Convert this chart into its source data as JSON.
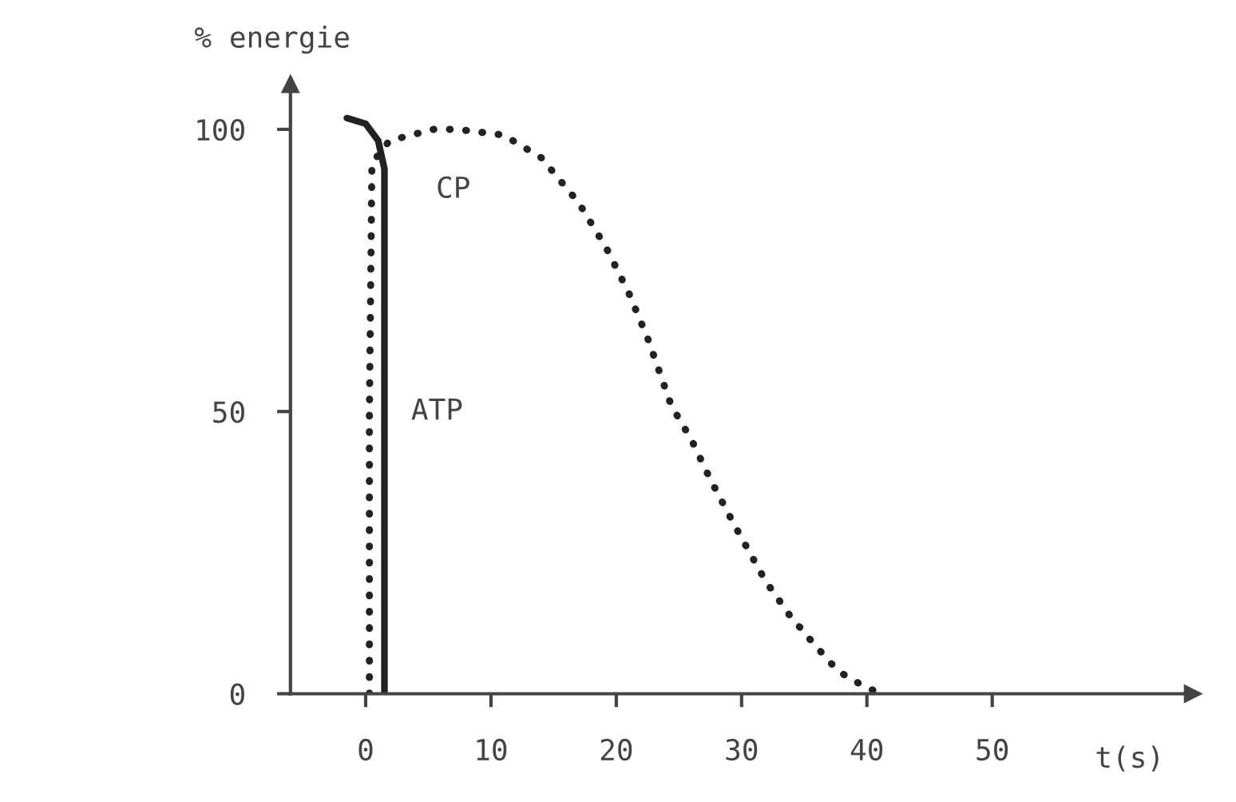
{
  "chart_data": {
    "type": "line",
    "xlabel": "t(s)",
    "ylabel": "% energie",
    "xlim": [
      -6,
      66
    ],
    "ylim": [
      0,
      108
    ],
    "xticks": [
      0,
      10,
      20,
      30,
      40,
      50
    ],
    "yticks": [
      0,
      50,
      100
    ],
    "grid": false,
    "legend": false,
    "series": [
      {
        "name": "ATP",
        "color": "#222222",
        "line_style": "solid",
        "x": [
          -1.5,
          0,
          1,
          1.5,
          1.5,
          1.5
        ],
        "values": [
          102,
          101,
          98,
          93,
          50,
          0
        ]
      },
      {
        "name": "CP",
        "color": "#222222",
        "line_style": "dotted",
        "x": [
          0.3,
          0.3,
          0.5,
          1.9,
          5.4,
          7.3,
          11,
          14,
          17,
          19.2,
          21,
          22.5,
          24.4,
          26,
          27.5,
          29.4,
          31.9,
          33.8,
          35.7,
          37.7,
          40,
          41.3
        ],
        "values": [
          0,
          50,
          94,
          98,
          100,
          100,
          99,
          95,
          87,
          79,
          71,
          63,
          51,
          45,
          38,
          30,
          20,
          14,
          9,
          4,
          1,
          0
        ]
      }
    ]
  }
}
